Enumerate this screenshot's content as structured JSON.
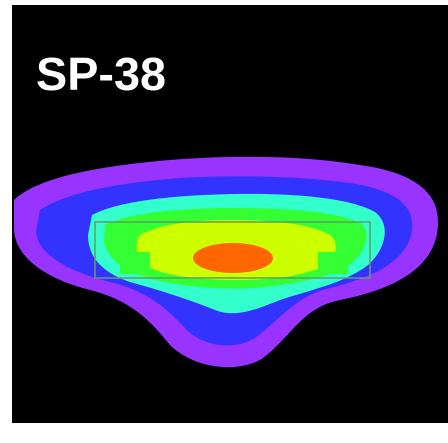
{
  "label": "SP-38"
}
